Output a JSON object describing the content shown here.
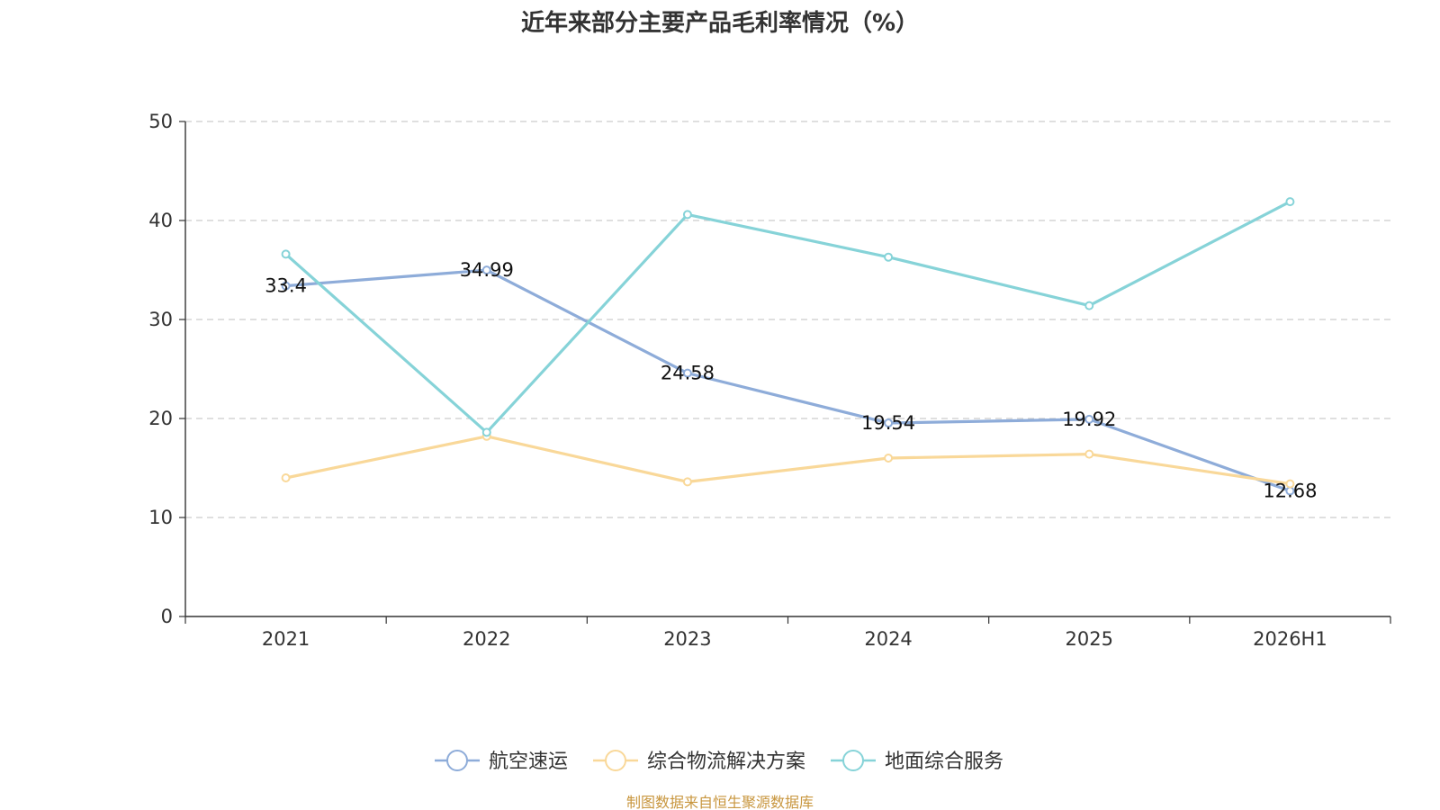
{
  "chart_data": {
    "type": "line",
    "title": "近年来部分主要产品毛利率情况（%）",
    "categories": [
      "2021",
      "2022",
      "2023",
      "2024",
      "2025",
      "2026H1"
    ],
    "ylim": [
      0,
      50
    ],
    "yticks": [
      0,
      10,
      20,
      30,
      40,
      50
    ],
    "grid": true,
    "legend_position": "bottom",
    "series": [
      {
        "name": "航空速运",
        "color": "#8eacd9",
        "values": [
          33.4,
          34.99,
          24.58,
          19.54,
          19.92,
          12.68
        ],
        "show_labels": true
      },
      {
        "name": "综合物流解决方案",
        "color": "#f9d899",
        "values": [
          14.0,
          18.2,
          13.6,
          16.0,
          16.4,
          13.4
        ],
        "show_labels": false
      },
      {
        "name": "地面综合服务",
        "color": "#86d3d8",
        "values": [
          36.6,
          18.6,
          40.6,
          36.3,
          31.4,
          41.9
        ],
        "show_labels": false
      }
    ]
  },
  "source": {
    "text": "制图数据来自恒生聚源数据库",
    "color": "#c8963e"
  }
}
